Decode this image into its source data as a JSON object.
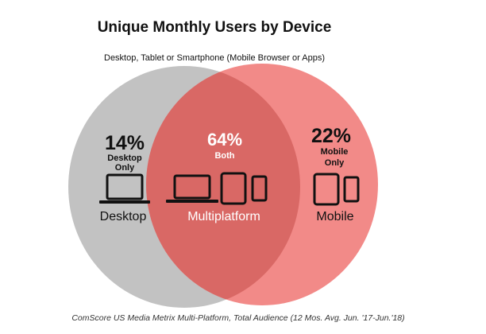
{
  "title": "Unique Monthly Users by Device",
  "subtitle": "Desktop, Tablet or Smartphone (Mobile Browser or Apps)",
  "source": "ComScore US Media Metrix Multi-Platform, Total Audience (12 Mos. Avg. Jun. '17-Jun.'18)",
  "colors": {
    "desktop_circle": "#c2c2c2",
    "mobile_circle": "#f28a88",
    "overlap": "#d96865",
    "text_dark": "#111111",
    "text_light": "#ffffff"
  },
  "segments": {
    "desktop": {
      "percent": "14%",
      "label_line1": "Desktop",
      "label_line2": "Only",
      "name": "Desktop",
      "icons": [
        "laptop-icon"
      ]
    },
    "both": {
      "percent": "64%",
      "label": "Both",
      "name": "Multiplatform",
      "icons": [
        "laptop-icon",
        "tablet-icon",
        "smartphone-icon"
      ]
    },
    "mobile": {
      "percent": "22%",
      "label_line1": "Mobile",
      "label_line2": "Only",
      "name": "Mobile",
      "icons": [
        "tablet-icon",
        "smartphone-icon"
      ]
    }
  }
}
